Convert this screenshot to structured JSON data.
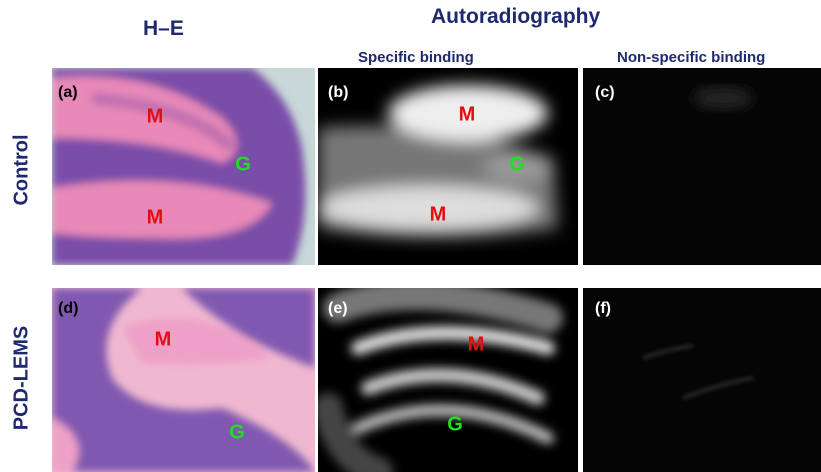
{
  "header": {
    "he": "H–E",
    "autoradiography": "Autoradiography",
    "specific": "Specific binding",
    "nonspecific": "Non-specific binding"
  },
  "rows": [
    {
      "label": "Control"
    },
    {
      "label": "PCD-LEMS"
    }
  ],
  "panels": [
    {
      "letter": "(a)",
      "markers": [
        "M",
        "G",
        "M"
      ]
    },
    {
      "letter": "(b)",
      "markers": [
        "M",
        "G",
        "M"
      ]
    },
    {
      "letter": "(c)",
      "markers": []
    },
    {
      "letter": "(d)",
      "markers": [
        "M",
        "G"
      ]
    },
    {
      "letter": "(e)",
      "markers": [
        "M",
        "G"
      ]
    },
    {
      "letter": "(f)",
      "markers": []
    }
  ]
}
